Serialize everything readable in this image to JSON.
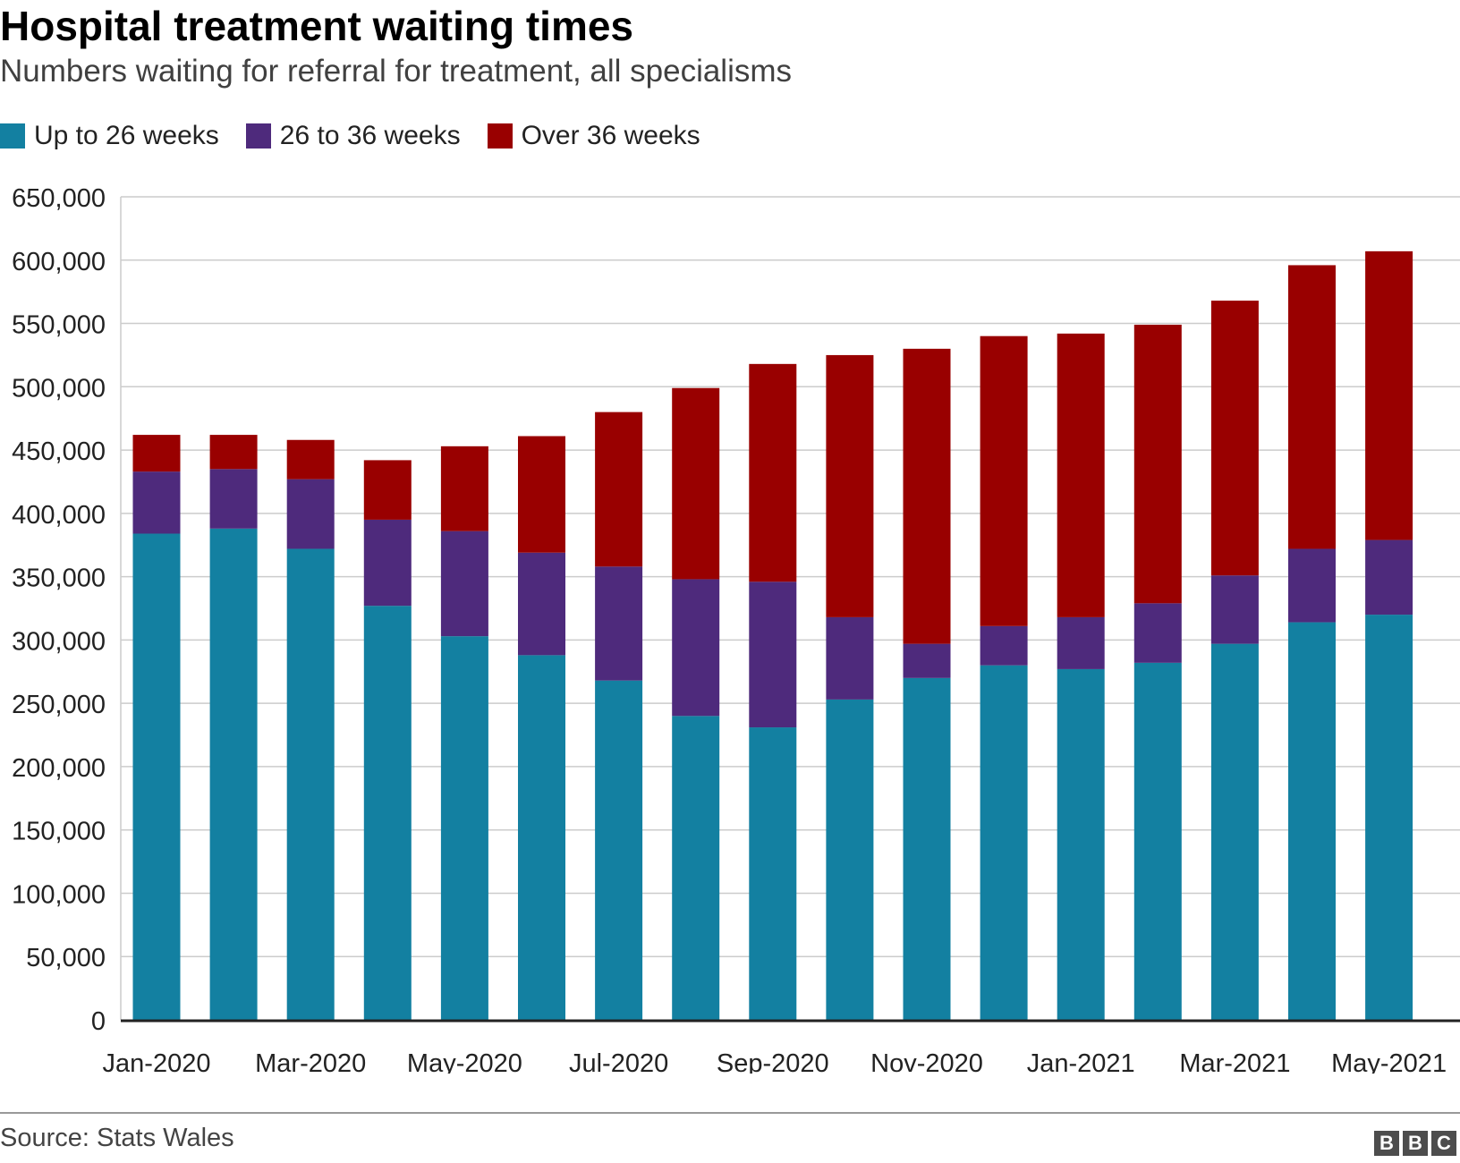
{
  "header": {
    "title": "Hospital treatment waiting times",
    "subtitle": "Numbers waiting for referral for treatment, all specialisms"
  },
  "footer": {
    "source": "Source: Stats Wales",
    "logo_letters": [
      "B",
      "B",
      "C"
    ]
  },
  "colors": {
    "up_to_26": "#1380a1",
    "26_to_36": "#4e2a7c",
    "over_36": "#990000",
    "grid": "#cccccc",
    "axis": "#222222"
  },
  "chart_data": {
    "type": "bar",
    "stacked": true,
    "title": "Hospital treatment waiting times",
    "subtitle": "Numbers waiting for referral for treatment, all specialisms",
    "xlabel": "",
    "ylabel": "",
    "ylim": [
      0,
      650000
    ],
    "yticks": [
      0,
      50000,
      100000,
      150000,
      200000,
      250000,
      300000,
      350000,
      400000,
      450000,
      500000,
      550000,
      600000,
      650000
    ],
    "ytick_labels": [
      "0",
      "50,000",
      "100,000",
      "150,000",
      "200,000",
      "250,000",
      "300,000",
      "350,000",
      "400,000",
      "450,000",
      "500,000",
      "550,000",
      "600,000",
      "650,000"
    ],
    "categories": [
      "Jan-2020",
      "Feb-2020",
      "Mar-2020",
      "Apr-2020",
      "May-2020",
      "Jun-2020",
      "Jul-2020",
      "Aug-2020",
      "Sep-2020",
      "Oct-2020",
      "Nov-2020",
      "Dec-2020",
      "Jan-2021",
      "Feb-2021",
      "Mar-2021",
      "Apr-2021",
      "May-2021"
    ],
    "xtick_labels": [
      "Jan-2020",
      "Mar-2020",
      "May-2020",
      "Jul-2020",
      "Sep-2020",
      "Nov-2020",
      "Jan-2021",
      "Mar-2021",
      "May-2021"
    ],
    "legend_position": "top-left",
    "grid": true,
    "series": [
      {
        "name": "Up to 26 weeks",
        "color": "#1380a1",
        "values": [
          384000,
          388000,
          372000,
          327000,
          303000,
          288000,
          268000,
          240000,
          231000,
          253000,
          270000,
          280000,
          277000,
          282000,
          297000,
          314000,
          320000
        ]
      },
      {
        "name": "26 to 36 weeks",
        "color": "#4e2a7c",
        "values": [
          49000,
          47000,
          55000,
          68000,
          83000,
          81000,
          90000,
          108000,
          115000,
          65000,
          27000,
          31000,
          41000,
          47000,
          54000,
          58000,
          59000
        ]
      },
      {
        "name": "Over 36 weeks",
        "color": "#990000",
        "values": [
          29000,
          27000,
          31000,
          47000,
          67000,
          92000,
          122000,
          151000,
          172000,
          207000,
          233000,
          229000,
          224000,
          220000,
          217000,
          224000,
          228000
        ]
      }
    ]
  }
}
